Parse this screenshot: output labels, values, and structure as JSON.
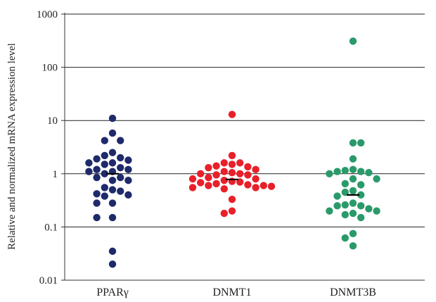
{
  "chart_data": {
    "type": "scatter",
    "title": "",
    "xlabel": "",
    "ylabel": "Relative and normalized mRNA expression level",
    "yscale": "log",
    "ylim": [
      0.01,
      1000
    ],
    "yticks": [
      0.01,
      0.1,
      1,
      10,
      100,
      1000
    ],
    "ytick_labels": [
      "0.01",
      "0.1",
      "1",
      "10",
      "100",
      "1000"
    ],
    "grid": "horizontal",
    "categories": [
      "PPARγ",
      "DNMT1",
      "DNMT3B"
    ],
    "series": [
      {
        "category": "PPARγ",
        "color": "#1f2a6b",
        "median": 1.0,
        "values": [
          11,
          5.8,
          4.2,
          4.2,
          2.5,
          2.2,
          2.0,
          1.9,
          1.8,
          1.6,
          1.6,
          1.5,
          1.3,
          1.2,
          1.2,
          1.1,
          1.1,
          1.0,
          0.85,
          0.85,
          0.75,
          0.75,
          0.55,
          0.5,
          0.47,
          0.42,
          0.4,
          0.38,
          0.28,
          0.28,
          0.15,
          0.15,
          0.035,
          0.02
        ]
      },
      {
        "category": "DNMT1",
        "color": "#e8202a",
        "median": 0.78,
        "values": [
          13,
          2.2,
          1.6,
          1.6,
          1.5,
          1.4,
          1.35,
          1.3,
          1.2,
          1.1,
          1.05,
          1.0,
          1.0,
          0.95,
          0.95,
          0.85,
          0.8,
          0.8,
          0.75,
          0.72,
          0.7,
          0.68,
          0.65,
          0.62,
          0.6,
          0.6,
          0.58,
          0.55,
          0.55,
          0.52,
          0.33,
          0.2,
          0.18
        ]
      },
      {
        "category": "DNMT3B",
        "color": "#2a9a6a",
        "median": 0.4,
        "values": [
          310,
          3.8,
          3.8,
          1.9,
          1.2,
          1.15,
          1.1,
          1.1,
          1.05,
          1.0,
          0.8,
          0.8,
          0.65,
          0.62,
          0.48,
          0.45,
          0.4,
          0.38,
          0.28,
          0.26,
          0.25,
          0.25,
          0.22,
          0.2,
          0.2,
          0.18,
          0.17,
          0.15,
          0.075,
          0.062,
          0.044
        ]
      }
    ]
  }
}
